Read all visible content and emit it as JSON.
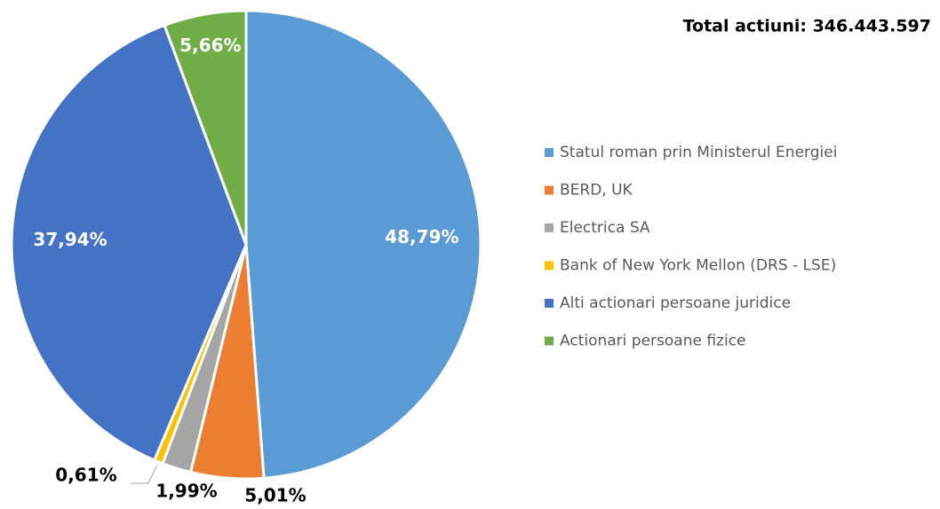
{
  "chart_data": {
    "type": "pie",
    "title": "Total actiuni: 346.443.597",
    "categories": [
      "Statul roman prin Ministerul Energiei",
      "BERD, UK",
      "Electrica SA",
      "Bank of New York Mellon (DRS - LSE)",
      "Alti actionari persoane juridice",
      "Actionari persoane fizice"
    ],
    "values": [
      48.79,
      5.01,
      1.99,
      0.61,
      37.94,
      5.66
    ],
    "value_labels": [
      "48,79%",
      "5,01%",
      "1,99%",
      "0,61%",
      "37,94%",
      "5,66%"
    ],
    "colors": [
      "#5b9bd5",
      "#ed7d31",
      "#a5a5a5",
      "#ffc000",
      "#4472c4",
      "#70ad47"
    ],
    "legend": "right"
  }
}
